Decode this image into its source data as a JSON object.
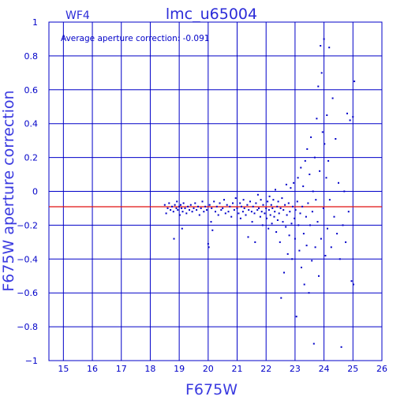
{
  "chart_data": {
    "type": "scatter",
    "panel_label": "WF4",
    "title": "lmc_u65004",
    "xlabel": "F675W",
    "ylabel": "F675W aperture correction",
    "annotation": "Average aperture correction: -0.091",
    "xlim": [
      14.5,
      26
    ],
    "ylim": [
      -1,
      1
    ],
    "x_ticks": [
      15,
      16,
      17,
      18,
      19,
      20,
      21,
      22,
      23,
      24,
      25,
      26
    ],
    "y_ticks": [
      -1,
      -0.8,
      -0.6,
      -0.4,
      -0.2,
      0,
      0.2,
      0.4,
      0.6,
      0.8,
      1
    ],
    "y_tick_labels": [
      "−1",
      "−0.8",
      "−0.6",
      "−0.4",
      "−0.2",
      "0",
      "0.2",
      "0.4",
      "0.6",
      "0.8",
      "1"
    ],
    "grid": true,
    "reference_line": {
      "y": -0.091,
      "color": "#e01010"
    },
    "colors": {
      "axes": "#0000c8",
      "points": "#0000c8",
      "title": "#2b2bd8"
    },
    "points": [
      [
        18.5,
        -0.08
      ],
      [
        18.55,
        -0.13
      ],
      [
        18.6,
        -0.1
      ],
      [
        18.65,
        -0.07
      ],
      [
        18.7,
        -0.11
      ],
      [
        18.75,
        -0.09
      ],
      [
        18.8,
        -0.12
      ],
      [
        18.82,
        -0.28
      ],
      [
        18.85,
        -0.08
      ],
      [
        18.9,
        -0.1
      ],
      [
        18.92,
        -0.06
      ],
      [
        18.95,
        -0.11
      ],
      [
        19.0,
        -0.09
      ],
      [
        19.02,
        -0.14
      ],
      [
        19.05,
        -0.08
      ],
      [
        19.08,
        -0.1
      ],
      [
        19.1,
        -0.22
      ],
      [
        19.12,
        -0.12
      ],
      [
        19.15,
        -0.07
      ],
      [
        19.2,
        -0.1
      ],
      [
        19.25,
        -0.13
      ],
      [
        19.3,
        -0.09
      ],
      [
        19.35,
        -0.11
      ],
      [
        19.4,
        -0.08
      ],
      [
        19.45,
        -0.12
      ],
      [
        19.5,
        -0.1
      ],
      [
        19.55,
        -0.07
      ],
      [
        19.6,
        -0.11
      ],
      [
        19.65,
        -0.09
      ],
      [
        19.7,
        -0.14
      ],
      [
        19.75,
        -0.1
      ],
      [
        19.8,
        -0.06
      ],
      [
        19.85,
        -0.12
      ],
      [
        19.9,
        -0.09
      ],
      [
        19.95,
        -0.11
      ],
      [
        20.0,
        -0.31
      ],
      [
        20.02,
        -0.33
      ],
      [
        20.05,
        -0.08
      ],
      [
        20.1,
        -0.18
      ],
      [
        20.12,
        -0.1
      ],
      [
        20.15,
        -0.23
      ],
      [
        20.2,
        -0.06
      ],
      [
        20.25,
        -0.12
      ],
      [
        20.3,
        -0.09
      ],
      [
        20.35,
        -0.14
      ],
      [
        20.4,
        -0.07
      ],
      [
        20.45,
        -0.11
      ],
      [
        20.5,
        -0.1
      ],
      [
        20.55,
        -0.05
      ],
      [
        20.6,
        -0.13
      ],
      [
        20.65,
        -0.08
      ],
      [
        20.7,
        -0.12
      ],
      [
        20.75,
        -0.09
      ],
      [
        20.8,
        -0.15
      ],
      [
        20.85,
        -0.07
      ],
      [
        20.9,
        -0.11
      ],
      [
        20.95,
        -0.04
      ],
      [
        21.0,
        -0.1
      ],
      [
        21.05,
        -0.13
      ],
      [
        21.1,
        -0.07
      ],
      [
        21.12,
        -0.16
      ],
      [
        21.15,
        -0.09
      ],
      [
        21.2,
        -0.12
      ],
      [
        21.22,
        -0.05
      ],
      [
        21.25,
        -0.1
      ],
      [
        21.3,
        -0.14
      ],
      [
        21.35,
        -0.08
      ],
      [
        21.38,
        -0.27
      ],
      [
        21.4,
        -0.11
      ],
      [
        21.45,
        -0.06
      ],
      [
        21.5,
        -0.12
      ],
      [
        21.52,
        -0.18
      ],
      [
        21.55,
        -0.09
      ],
      [
        21.6,
        -0.13
      ],
      [
        21.62,
        -0.3
      ],
      [
        21.65,
        -0.07
      ],
      [
        21.7,
        -0.11
      ],
      [
        21.72,
        -0.02
      ],
      [
        21.75,
        -0.1
      ],
      [
        21.8,
        -0.15
      ],
      [
        21.82,
        -0.05
      ],
      [
        21.85,
        -0.12
      ],
      [
        21.88,
        -0.2
      ],
      [
        21.9,
        -0.08
      ],
      [
        21.95,
        -0.13
      ],
      [
        22.0,
        -0.1
      ],
      [
        22.02,
        -0.16
      ],
      [
        22.05,
        -0.06
      ],
      [
        22.08,
        -0.22
      ],
      [
        22.1,
        -0.11
      ],
      [
        22.12,
        -0.03
      ],
      [
        22.15,
        -0.14
      ],
      [
        22.18,
        -0.08
      ],
      [
        22.2,
        -0.19
      ],
      [
        22.22,
        -0.1
      ],
      [
        22.25,
        -0.05
      ],
      [
        22.28,
        -0.15
      ],
      [
        22.3,
        -0.12
      ],
      [
        22.32,
        0.01
      ],
      [
        22.35,
        -0.24
      ],
      [
        22.38,
        -0.09
      ],
      [
        22.4,
        -0.17
      ],
      [
        22.42,
        -0.06
      ],
      [
        22.45,
        -0.13
      ],
      [
        22.48,
        -0.3
      ],
      [
        22.5,
        -0.1
      ],
      [
        22.52,
        -0.63
      ],
      [
        22.55,
        -0.04
      ],
      [
        22.58,
        -0.18
      ],
      [
        22.6,
        -0.11
      ],
      [
        22.62,
        -0.48
      ],
      [
        22.65,
        -0.08
      ],
      [
        22.68,
        -0.21
      ],
      [
        22.7,
        0.04
      ],
      [
        22.72,
        -0.14
      ],
      [
        22.75,
        -0.37
      ],
      [
        22.78,
        -0.07
      ],
      [
        22.8,
        -0.26
      ],
      [
        22.82,
        -0.12
      ],
      [
        22.85,
        0.02
      ],
      [
        22.88,
        -0.19
      ],
      [
        22.9,
        -0.4
      ],
      [
        22.92,
        -0.09
      ],
      [
        22.95,
        0.05
      ],
      [
        22.98,
        -0.16
      ],
      [
        23.0,
        -0.28
      ],
      [
        23.02,
        -0.11
      ],
      [
        23.05,
        -0.74
      ],
      [
        23.08,
        -0.06
      ],
      [
        23.1,
        0.08
      ],
      [
        23.12,
        -0.2
      ],
      [
        23.15,
        -0.35
      ],
      [
        23.18,
        -0.13
      ],
      [
        23.2,
        0.14
      ],
      [
        23.22,
        -0.45
      ],
      [
        23.25,
        -0.09
      ],
      [
        23.28,
        0.03
      ],
      [
        23.3,
        -0.25
      ],
      [
        23.32,
        -0.55
      ],
      [
        23.35,
        0.18
      ],
      [
        23.38,
        -0.15
      ],
      [
        23.4,
        -0.32
      ],
      [
        23.42,
        0.25
      ],
      [
        23.45,
        -0.07
      ],
      [
        23.48,
        -0.6
      ],
      [
        23.5,
        0.1
      ],
      [
        23.52,
        -0.2
      ],
      [
        23.55,
        0.32
      ],
      [
        23.58,
        -0.41
      ],
      [
        23.6,
        -0.12
      ],
      [
        23.62,
        0.0
      ],
      [
        23.65,
        -0.9
      ],
      [
        23.68,
        0.2
      ],
      [
        23.7,
        -0.33
      ],
      [
        23.72,
        -0.05
      ],
      [
        23.75,
        0.43
      ],
      [
        23.78,
        -0.18
      ],
      [
        23.8,
        0.62
      ],
      [
        23.82,
        -0.5
      ],
      [
        23.85,
        0.12
      ],
      [
        23.88,
        0.86
      ],
      [
        23.9,
        -0.28
      ],
      [
        23.92,
        0.7
      ],
      [
        23.95,
        0.35
      ],
      [
        23.98,
        -0.1
      ],
      [
        24.0,
        0.9
      ],
      [
        24.02,
        0.28
      ],
      [
        24.05,
        -0.38
      ],
      [
        24.08,
        0.08
      ],
      [
        24.1,
        0.45
      ],
      [
        24.12,
        -0.22
      ],
      [
        24.15,
        0.18
      ],
      [
        24.18,
        0.85
      ],
      [
        24.2,
        -0.05
      ],
      [
        24.25,
        -0.33
      ],
      [
        24.3,
        0.55
      ],
      [
        24.35,
        -0.15
      ],
      [
        24.4,
        0.31
      ],
      [
        24.45,
        -0.25
      ],
      [
        24.5,
        0.05
      ],
      [
        24.55,
        -0.4
      ],
      [
        24.6,
        -0.92
      ],
      [
        24.65,
        -0.2
      ],
      [
        24.7,
        0.0
      ],
      [
        24.75,
        -0.3
      ],
      [
        24.8,
        0.46
      ],
      [
        24.85,
        -0.12
      ],
      [
        24.9,
        0.42
      ],
      [
        24.95,
        -0.53
      ],
      [
        25.0,
        0.44
      ],
      [
        25.02,
        -0.55
      ],
      [
        25.05,
        0.65
      ]
    ]
  }
}
